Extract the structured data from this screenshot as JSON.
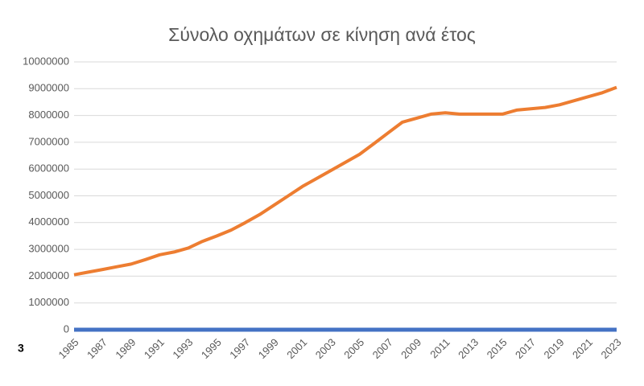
{
  "chart_data": {
    "type": "line",
    "title": "Σύνολο οχημάτων σε κίνηση ανά έτος",
    "annotation": "3",
    "categories": [
      "1985",
      null,
      "1987",
      null,
      "1989",
      null,
      "1991",
      null,
      "1993",
      null,
      "1995",
      null,
      "1997",
      null,
      "1999",
      null,
      "2001",
      null,
      "2003",
      null,
      "2005",
      null,
      "2007",
      null,
      "2009",
      null,
      "2011",
      null,
      "2013",
      null,
      "2015",
      null,
      "2017",
      null,
      "2019",
      null,
      "2021",
      null,
      "2023"
    ],
    "series": [
      {
        "color": "#ed7d31",
        "values": [
          2050000,
          2150000,
          2250000,
          2350000,
          2450000,
          2620000,
          2800000,
          2900000,
          3050000,
          3300000,
          3500000,
          3720000,
          4000000,
          4300000,
          4650000,
          5000000,
          5350000,
          5650000,
          5950000,
          6250000,
          6550000,
          6950000,
          7350000,
          7750000,
          7900000,
          8050000,
          8100000,
          8050000,
          8050000,
          8050000,
          8050000,
          8200000,
          8250000,
          8300000,
          8400000,
          8550000,
          8700000,
          8850000,
          9050000
        ]
      },
      {
        "color": "#4472c4",
        "values": [
          0,
          0,
          0,
          0,
          0,
          0,
          0,
          0,
          0,
          0,
          0,
          0,
          0,
          0,
          0,
          0,
          0,
          0,
          0,
          0,
          0,
          0,
          0,
          0,
          0,
          0,
          0,
          0,
          0,
          0,
          0,
          0,
          0,
          0,
          0,
          0,
          0,
          0,
          0
        ]
      }
    ],
    "ylim": [
      0,
      10000000
    ],
    "yticks": [
      0,
      1000000,
      2000000,
      3000000,
      4000000,
      5000000,
      6000000,
      7000000,
      8000000,
      9000000,
      10000000
    ],
    "grid": true
  }
}
